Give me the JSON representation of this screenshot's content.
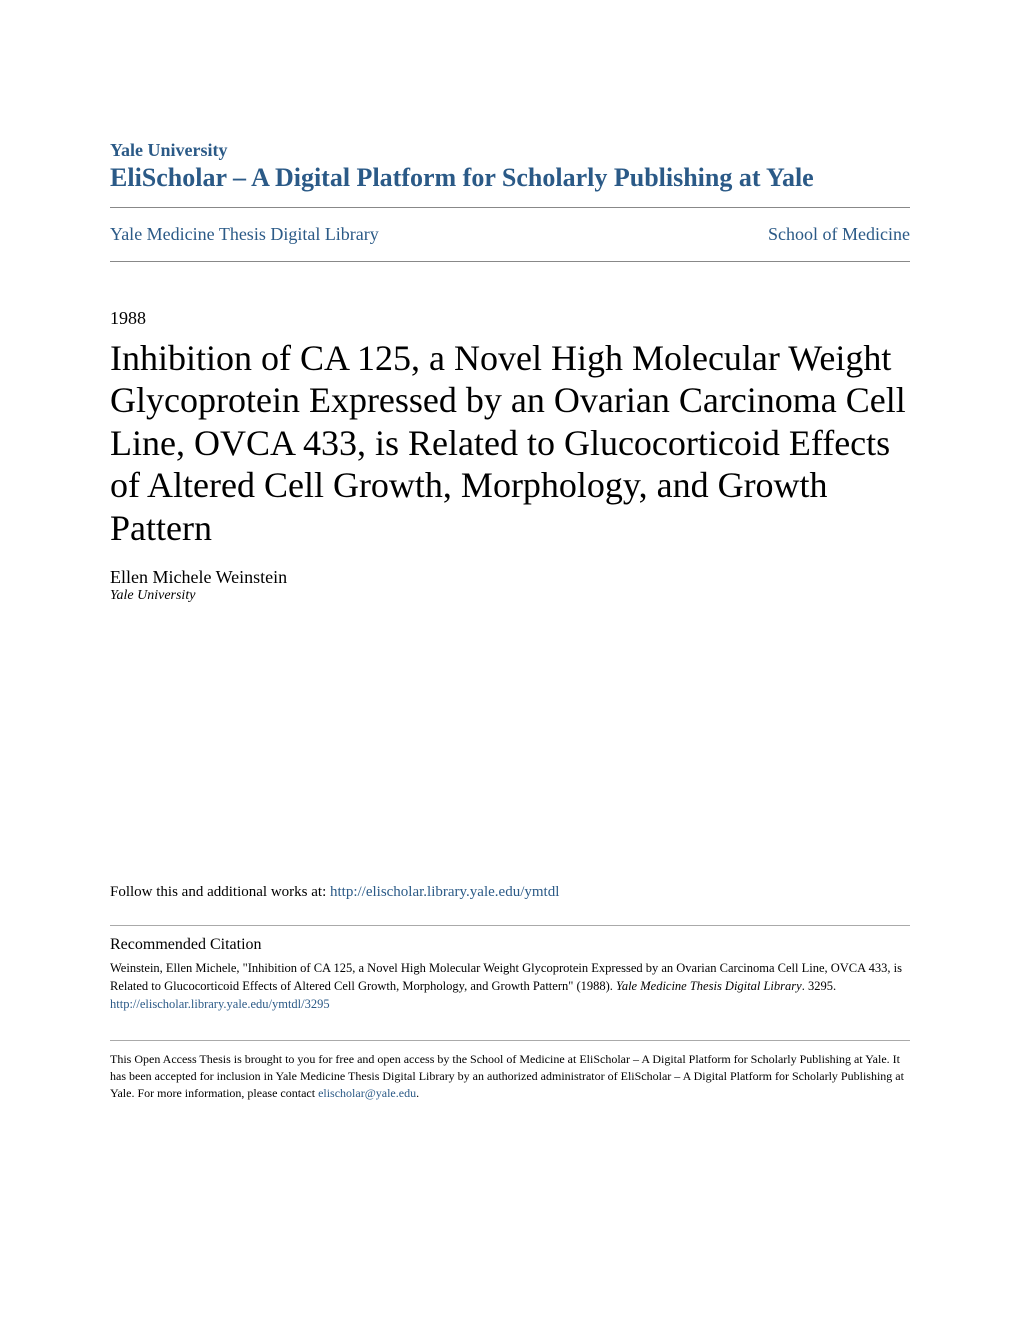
{
  "header": {
    "institution": "Yale University",
    "platform": "EliScholar – A Digital Platform for Scholarly Publishing at Yale",
    "color_brand": "#2b5a87"
  },
  "nav": {
    "left": "Yale Medicine Thesis Digital Library",
    "right": "School of Medicine"
  },
  "paper": {
    "year": "1988",
    "title": "Inhibition of CA 125, a Novel High Molecular Weight Glycoprotein Expressed by an Ovarian Carcinoma Cell Line, OVCA 433, is Related to Glucocorticoid Effects of Altered Cell Growth, Morphology, and Growth Pattern",
    "author": "Ellen Michele Weinstein",
    "affiliation": "Yale University"
  },
  "follow": {
    "prefix": "Follow this and additional works at: ",
    "url": "http://elischolar.library.yale.edu/ymtdl"
  },
  "citation": {
    "header": "Recommended Citation",
    "body_part1": "Weinstein, Ellen Michele, \"Inhibition of CA 125, a Novel High Molecular Weight Glycoprotein Expressed by an Ovarian Carcinoma Cell Line, OVCA 433, is Related to Glucocorticoid Effects of Altered Cell Growth, Morphology, and Growth Pattern\" (1988). ",
    "body_italic": "Yale Medicine Thesis Digital Library",
    "body_part2": ". 3295.",
    "link": "http://elischolar.library.yale.edu/ymtdl/3295"
  },
  "footer": {
    "text_part1": "This Open Access Thesis is brought to you for free and open access by the School of Medicine at EliScholar – A Digital Platform for Scholarly Publishing at Yale. It has been accepted for inclusion in Yale Medicine Thesis Digital Library by an authorized administrator of EliScholar – A Digital Platform for Scholarly Publishing at Yale. For more information, please contact ",
    "email": "elischolar@yale.edu",
    "text_part2": "."
  }
}
